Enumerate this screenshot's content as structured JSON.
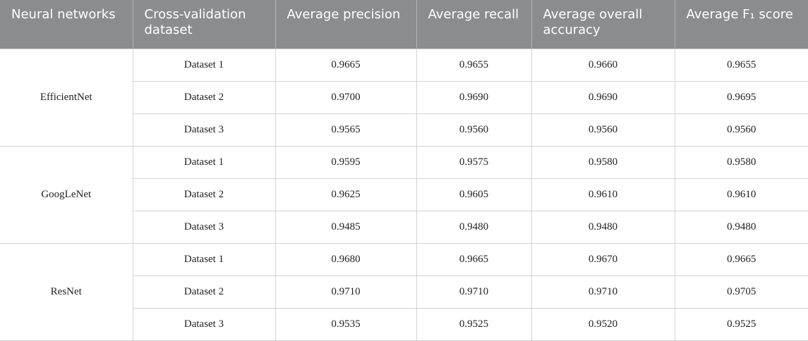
{
  "table": {
    "header": [
      "Neural networks",
      "Cross-validation dataset",
      "Average precision",
      "Average recall",
      "Average overall accuracy",
      "Average F₁ score"
    ],
    "groups": [
      {
        "name": "EfficientNet",
        "rows": [
          [
            "Dataset 1",
            "0.9665",
            "0.9655",
            "0.9660",
            "0.9655"
          ],
          [
            "Dataset 2",
            "0.9700",
            "0.9690",
            "0.9690",
            "0.9695"
          ],
          [
            "Dataset 3",
            "0.9565",
            "0.9560",
            "0.9560",
            "0.9560"
          ]
        ]
      },
      {
        "name": "GoogLeNet",
        "rows": [
          [
            "Dataset 1",
            "0.9595",
            "0.9575",
            "0.9580",
            "0.9580"
          ],
          [
            "Dataset 2",
            "0.9625",
            "0.9605",
            "0.9610",
            "0.9610"
          ],
          [
            "Dataset 3",
            "0.9485",
            "0.9480",
            "0.9480",
            "0.9480"
          ]
        ]
      },
      {
        "name": "ResNet",
        "rows": [
          [
            "Dataset 1",
            "0.9680",
            "0.9665",
            "0.9670",
            "0.9665"
          ],
          [
            "Dataset 2",
            "0.9710",
            "0.9710",
            "0.9710",
            "0.9705"
          ],
          [
            "Dataset 3",
            "0.9535",
            "0.9525",
            "0.9520",
            "0.9525"
          ]
        ]
      }
    ]
  }
}
